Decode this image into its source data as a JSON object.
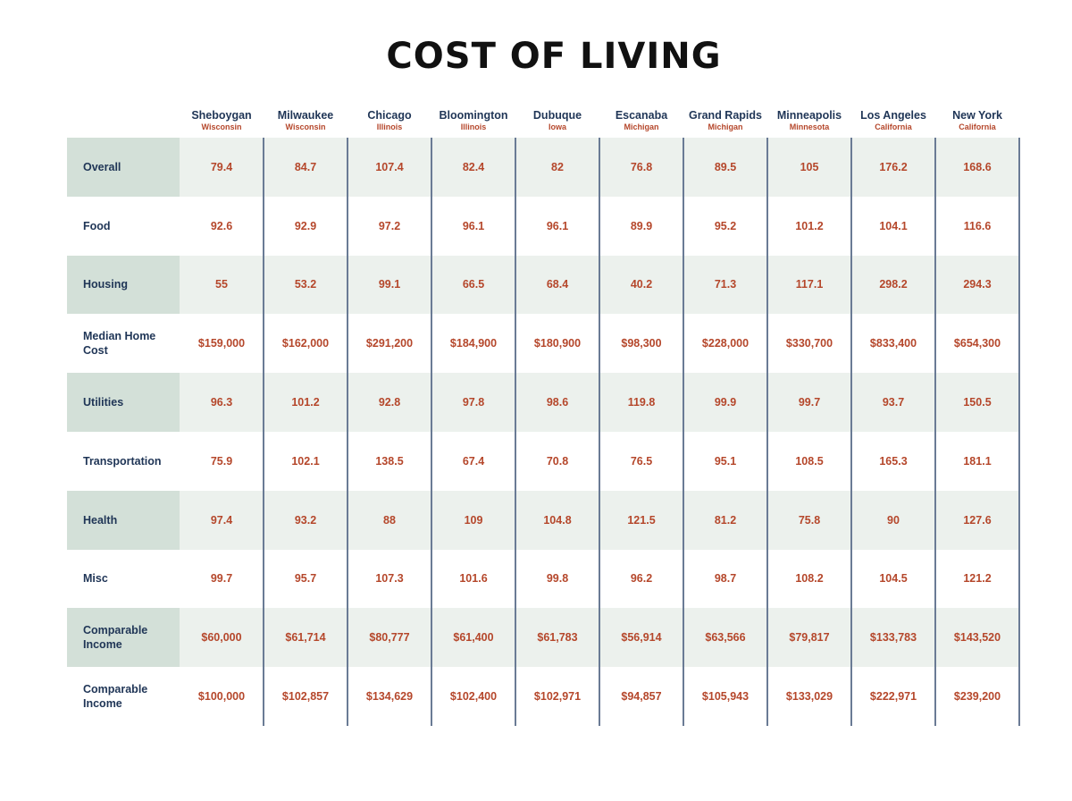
{
  "title": "COST OF LIVING",
  "colors": {
    "title": "#111111",
    "header": "#1f3556",
    "value": "#b5472b",
    "label_bg": "#d3e0d8",
    "row_shade": "#ecf1ed",
    "divider": "#6a7b95"
  },
  "chart_data": {
    "type": "table",
    "title": "COST OF LIVING",
    "columns": [
      {
        "name": "Sheboygan",
        "state": "Wisconsin"
      },
      {
        "name": "Milwaukee",
        "state": "Wisconsin"
      },
      {
        "name": "Chicago",
        "state": "Illinois"
      },
      {
        "name": "Bloomington",
        "state": "Illinois"
      },
      {
        "name": "Dubuque",
        "state": "Iowa"
      },
      {
        "name": "Escanaba",
        "state": "Michigan"
      },
      {
        "name": "Grand Rapids",
        "state": "Michigan"
      },
      {
        "name": "Minneapolis",
        "state": "Minnesota"
      },
      {
        "name": "Los Angeles",
        "state": "California"
      },
      {
        "name": "New York",
        "state": "California"
      }
    ],
    "rows": [
      {
        "label": "Overall",
        "values": [
          "79.4",
          "84.7",
          "107.4",
          "82.4",
          "82",
          "76.8",
          "89.5",
          "105",
          "176.2",
          "168.6"
        ]
      },
      {
        "label": "Food",
        "values": [
          "92.6",
          "92.9",
          "97.2",
          "96.1",
          "96.1",
          "89.9",
          "95.2",
          "101.2",
          "104.1",
          "116.6"
        ]
      },
      {
        "label": "Housing",
        "values": [
          "55",
          "53.2",
          "99.1",
          "66.5",
          "68.4",
          "40.2",
          "71.3",
          "117.1",
          "298.2",
          "294.3"
        ]
      },
      {
        "label": "Median Home Cost",
        "values": [
          "$159,000",
          "$162,000",
          "$291,200",
          "$184,900",
          "$180,900",
          "$98,300",
          "$228,000",
          "$330,700",
          "$833,400",
          "$654,300"
        ]
      },
      {
        "label": "Utilities",
        "values": [
          "96.3",
          "101.2",
          "92.8",
          "97.8",
          "98.6",
          "119.8",
          "99.9",
          "99.7",
          "93.7",
          "150.5"
        ]
      },
      {
        "label": "Transportation",
        "values": [
          "75.9",
          "102.1",
          "138.5",
          "67.4",
          "70.8",
          "76.5",
          "95.1",
          "108.5",
          "165.3",
          "181.1"
        ]
      },
      {
        "label": "Health",
        "values": [
          "97.4",
          "93.2",
          "88",
          "109",
          "104.8",
          "121.5",
          "81.2",
          "75.8",
          "90",
          "127.6"
        ]
      },
      {
        "label": "Misc",
        "values": [
          "99.7",
          "95.7",
          "107.3",
          "101.6",
          "99.8",
          "96.2",
          "98.7",
          "108.2",
          "104.5",
          "121.2"
        ]
      },
      {
        "label": "Comparable Income",
        "values": [
          "$60,000",
          "$61,714",
          "$80,777",
          "$61,400",
          "$61,783",
          "$56,914",
          "$63,566",
          "$79,817",
          "$133,783",
          "$143,520"
        ]
      },
      {
        "label": "Comparable Income",
        "values": [
          "$100,000",
          "$102,857",
          "$134,629",
          "$102,400",
          "$102,971",
          "$94,857",
          "$105,943",
          "$133,029",
          "$222,971",
          "$239,200"
        ]
      }
    ]
  }
}
